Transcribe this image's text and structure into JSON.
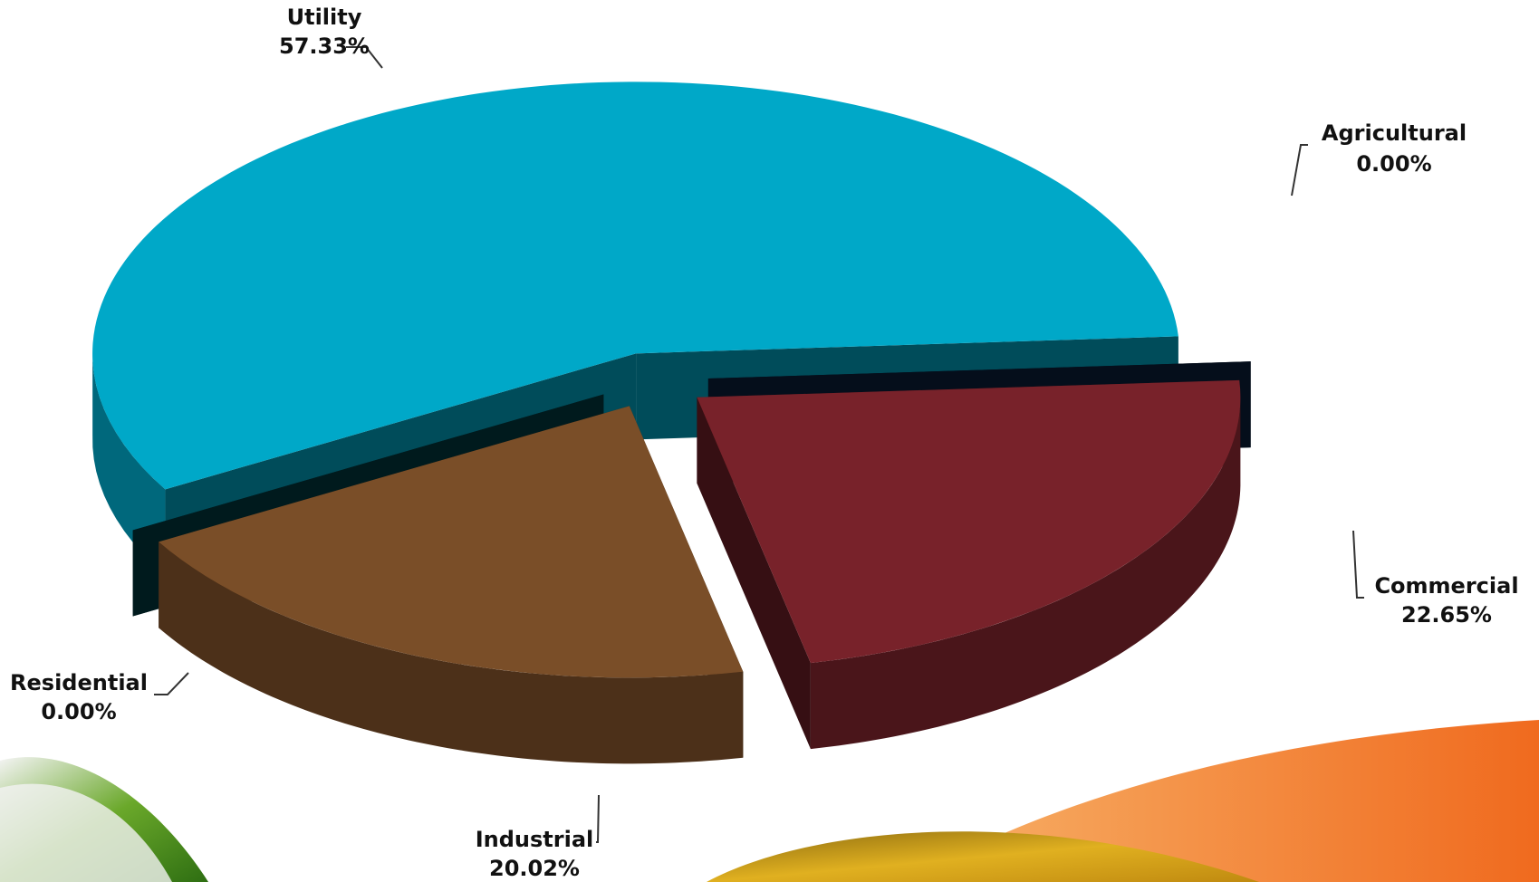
{
  "chart_data": {
    "type": "pie3d",
    "categories": [
      "Utility",
      "Agricultural",
      "Commercial",
      "Industrial",
      "Residential"
    ],
    "values": [
      57.33,
      0,
      22.65,
      20.02,
      0
    ],
    "value_labels": [
      "57.33%",
      "0.00%",
      "22.65%",
      "20.02%",
      "0.00%"
    ],
    "colors": [
      "#00a8c8",
      "#0c1f3d",
      "#78222a",
      "#7a4e28",
      "#003a40"
    ]
  }
}
